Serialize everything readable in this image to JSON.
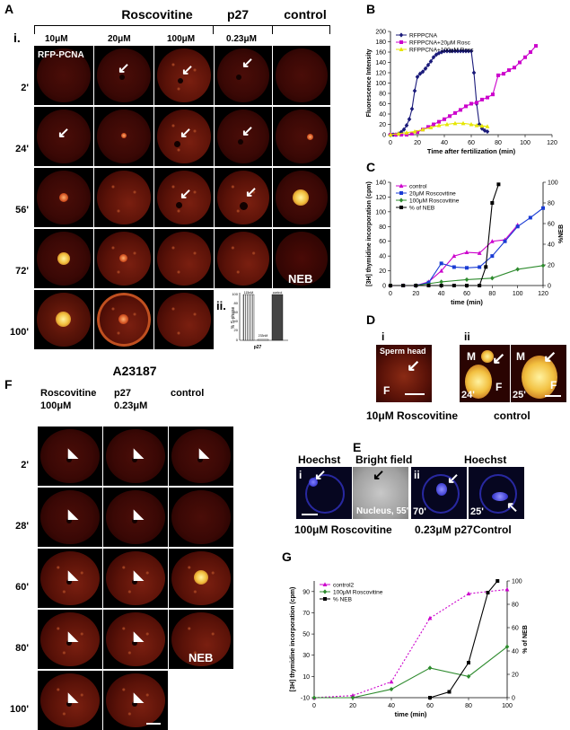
{
  "panels": {
    "A": {
      "letter": "A",
      "roscovitine_header": "Roscovitine",
      "p27_header": "p27",
      "control_header": "control",
      "roman": "i.",
      "conc": [
        "10μM",
        "20μM",
        "100μM",
        "0.23μM"
      ],
      "rfp_label": "RFP-PCNA",
      "times": [
        "2'",
        "24'",
        "56'",
        "72'",
        "100'"
      ],
      "neb": "NEB",
      "inset": {
        "roman": "ii.",
        "ylabel": "% S-phase",
        "bar_labels": [
          "115nM",
          "233nM",
          "control"
        ],
        "values": [
          100,
          2,
          100
        ],
        "xlabel": "p27"
      }
    },
    "B": {
      "letter": "B"
    },
    "C": {
      "letter": "C"
    },
    "D": {
      "letter": "D",
      "i": "i",
      "ii": "ii",
      "sperm_head": "Sperm head",
      "F": "F",
      "M": "M",
      "t1": "24'",
      "t2": "25'",
      "caption_left": "10μM Roscovitine",
      "caption_right": "control"
    },
    "E": {
      "letter": "E",
      "hoechst": "Hoechst",
      "bright_field": "Bright field",
      "i": "i",
      "ii": "ii",
      "nucleus": "Nucleus, 55'",
      "t70": "70'",
      "t25": "25'",
      "caption_1": "100μM Roscovitine",
      "caption_2": "0.23μM p27",
      "caption_3": "Control"
    },
    "F": {
      "letter": "F",
      "title": "A23187",
      "col1a": "Roscovitine",
      "col1b": "100μM",
      "col2a": "p27",
      "col2b": "0.23μM",
      "col3": "control",
      "times": [
        "2'",
        "28'",
        "60'",
        "80'",
        "100'"
      ],
      "neb": "NEB"
    },
    "G": {
      "letter": "G"
    }
  },
  "chart_data": [
    {
      "id": "B",
      "type": "line",
      "xlabel": "Time after fertilization (min)",
      "ylabel": "Fluorescence Intensity",
      "xlim": [
        0,
        120
      ],
      "ylim": [
        0,
        200
      ],
      "xticks": [
        0,
        20,
        40,
        60,
        80,
        100,
        120
      ],
      "yticks": [
        0,
        20,
        40,
        60,
        80,
        100,
        120,
        140,
        160,
        180,
        200
      ],
      "legend": "top-left",
      "series": [
        {
          "name": "RFPPCNA",
          "color": "#1a1a7a",
          "marker": "diamond",
          "x": [
            0,
            2,
            4,
            6,
            8,
            10,
            12,
            14,
            16,
            18,
            20,
            22,
            24,
            26,
            28,
            30,
            32,
            34,
            36,
            38,
            40,
            42,
            44,
            46,
            48,
            50,
            52,
            54,
            56,
            58,
            60,
            62,
            64,
            66,
            68,
            70,
            72
          ],
          "y": [
            0,
            0,
            0,
            2,
            5,
            10,
            18,
            30,
            50,
            85,
            112,
            118,
            122,
            128,
            135,
            142,
            150,
            155,
            158,
            160,
            162,
            162,
            162,
            162,
            162,
            162,
            162,
            162,
            162,
            162,
            162,
            120,
            60,
            20,
            12,
            8,
            6
          ]
        },
        {
          "name": "RFPPCNA+20μM Rosc",
          "color": "#cc00cc",
          "marker": "square",
          "x": [
            0,
            4,
            8,
            12,
            16,
            20,
            24,
            28,
            32,
            36,
            40,
            44,
            48,
            52,
            56,
            60,
            64,
            68,
            72,
            76,
            80,
            84,
            88,
            92,
            96,
            100,
            104,
            108
          ],
          "y": [
            0,
            0,
            0,
            0,
            2,
            5,
            10,
            15,
            20,
            25,
            30,
            36,
            42,
            48,
            55,
            60,
            62,
            68,
            72,
            78,
            115,
            118,
            125,
            130,
            140,
            150,
            160,
            172
          ]
        },
        {
          "name": "RFPPCNA+100μM Rosc",
          "color": "#e6e600",
          "marker": "triangle",
          "x": [
            0,
            6,
            12,
            18,
            24,
            30,
            36,
            42,
            48,
            54,
            60,
            64,
            68,
            72
          ],
          "y": [
            0,
            2,
            4,
            6,
            10,
            14,
            18,
            20,
            22,
            22,
            20,
            18,
            17,
            16
          ]
        }
      ]
    },
    {
      "id": "C",
      "type": "line",
      "xlabel": "time (min)",
      "ylabel": "[3H] thymidine incorporation (cpm)",
      "y2label": "%NEB",
      "xlim": [
        0,
        120
      ],
      "ylim": [
        0,
        140
      ],
      "y2lim": [
        0,
        100
      ],
      "xticks": [
        0,
        20,
        40,
        60,
        80,
        100,
        120
      ],
      "yticks": [
        0,
        20,
        40,
        60,
        80,
        100,
        120,
        140
      ],
      "y2ticks": [
        0,
        20,
        40,
        60,
        80,
        100
      ],
      "legend": "top-left",
      "series": [
        {
          "name": "control",
          "color": "#cc00cc",
          "marker": "triangle",
          "axis": "y",
          "x": [
            0,
            10,
            20,
            30,
            40,
            50,
            60,
            70,
            80,
            90,
            100
          ],
          "y": [
            0,
            0,
            0,
            5,
            20,
            40,
            45,
            44,
            60,
            62,
            82
          ]
        },
        {
          "name": "20μM Roscovitine",
          "color": "#1a3cd4",
          "marker": "square",
          "axis": "y",
          "x": [
            0,
            10,
            20,
            30,
            40,
            50,
            60,
            70,
            80,
            90,
            100,
            110,
            120
          ],
          "y": [
            0,
            0,
            0,
            4,
            30,
            25,
            24,
            25,
            40,
            60,
            80,
            92,
            105
          ]
        },
        {
          "name": "100μM Roscovitine",
          "color": "#2e8b2e",
          "marker": "diamond",
          "axis": "y",
          "x": [
            0,
            20,
            40,
            60,
            80,
            100,
            120
          ],
          "y": [
            0,
            0,
            5,
            8,
            10,
            22,
            27
          ]
        },
        {
          "name": "% of NEB",
          "color": "#000000",
          "marker": "square",
          "axis": "y2",
          "x": [
            0,
            10,
            20,
            30,
            40,
            50,
            60,
            70,
            75,
            80,
            85
          ],
          "y": [
            0,
            0,
            0,
            0,
            0,
            0,
            0,
            0,
            18,
            80,
            98
          ]
        }
      ]
    },
    {
      "id": "G",
      "type": "line",
      "xlabel": "time (min)",
      "ylabel": "[3H] thymidine incorporation (cpm)",
      "y2label": "% of NEB",
      "xlim": [
        0,
        100
      ],
      "ylim": [
        -10,
        100
      ],
      "y2lim": [
        0,
        100
      ],
      "xticks": [
        0,
        20,
        40,
        60,
        80,
        100
      ],
      "yticks": [
        -10,
        10,
        30,
        50,
        70,
        90
      ],
      "y2ticks": [
        0,
        20,
        40,
        60,
        80,
        100
      ],
      "legend": "top-left",
      "series": [
        {
          "name": "control2",
          "color": "#cc00cc",
          "marker": "triangle",
          "axis": "y",
          "dashed": true,
          "x": [
            0,
            20,
            40,
            60,
            80,
            100
          ],
          "y": [
            -10,
            -8,
            5,
            65,
            88,
            92
          ]
        },
        {
          "name": "100μM Roscovitine",
          "color": "#2e8b2e",
          "marker": "diamond",
          "axis": "y",
          "x": [
            0,
            20,
            40,
            60,
            80,
            100
          ],
          "y": [
            -10,
            -10,
            -2,
            18,
            10,
            38
          ]
        },
        {
          "name": "% NEB",
          "color": "#000000",
          "marker": "square",
          "axis": "y2",
          "x": [
            60,
            70,
            80,
            90,
            95
          ],
          "y": [
            0,
            5,
            30,
            90,
            100
          ]
        }
      ]
    }
  ]
}
